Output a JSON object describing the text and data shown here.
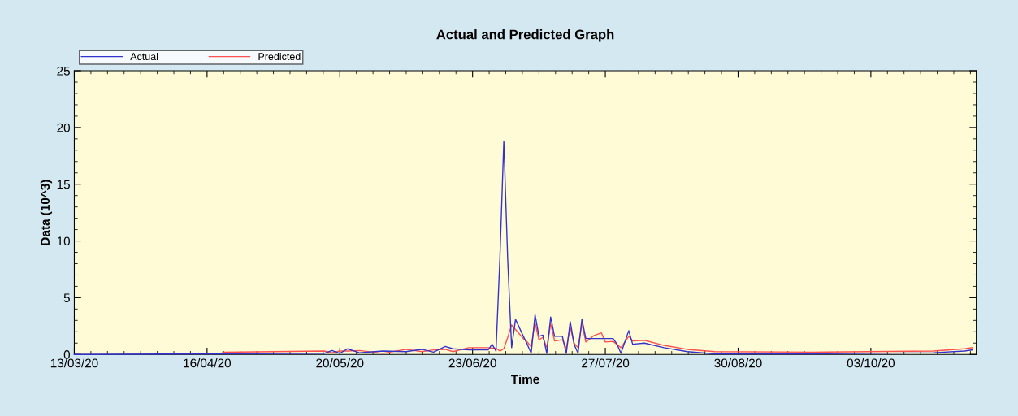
{
  "chart_data": {
    "type": "line",
    "title": "Actual and Predicted Graph",
    "xlabel": "Time",
    "ylabel": "Data (10^3)",
    "xlim": [
      "2020-03-13",
      "2020-10-30"
    ],
    "xticks": [
      {
        "value": "2020-03-13",
        "label": "13/03/20"
      },
      {
        "value": "2020-04-16",
        "label": "16/04/20"
      },
      {
        "value": "2020-05-20",
        "label": "20/05/20"
      },
      {
        "value": "2020-06-23",
        "label": "23/06/20"
      },
      {
        "value": "2020-07-27",
        "label": "27/07/20"
      },
      {
        "value": "2020-08-30",
        "label": "30/08/20"
      },
      {
        "value": "2020-10-03",
        "label": "03/10/20"
      }
    ],
    "ylim": [
      0,
      25
    ],
    "yticks": [
      0,
      5,
      10,
      15,
      20,
      25
    ],
    "grid": false,
    "legend": "top left",
    "marker": "none",
    "line_style": "solid",
    "series": [
      {
        "name": "Actual",
        "color": "#3333cc",
        "x": [
          "2020-03-13",
          "2020-04-15",
          "2020-05-16",
          "2020-05-18",
          "2020-05-20",
          "2020-05-22",
          "2020-05-25",
          "2020-05-31",
          "2020-06-06",
          "2020-06-10",
          "2020-06-13",
          "2020-06-16",
          "2020-06-18",
          "2020-06-22",
          "2020-06-27",
          "2020-06-28",
          "2020-06-29",
          "2020-06-30",
          "2020-07-01",
          "2020-07-02",
          "2020-07-03",
          "2020-07-04",
          "2020-07-06",
          "2020-07-07",
          "2020-07-08",
          "2020-07-09",
          "2020-07-10",
          "2020-07-11",
          "2020-07-12",
          "2020-07-13",
          "2020-07-14",
          "2020-07-16",
          "2020-07-17",
          "2020-07-18",
          "2020-07-19",
          "2020-07-20",
          "2020-07-21",
          "2020-07-22",
          "2020-07-29",
          "2020-07-30",
          "2020-07-31",
          "2020-08-02",
          "2020-08-03",
          "2020-08-06",
          "2020-08-11",
          "2020-08-17",
          "2020-08-24",
          "2020-09-18",
          "2020-10-19",
          "2020-10-27",
          "2020-10-29"
        ],
        "values": [
          0,
          0.05,
          0.1,
          0.35,
          0.1,
          0.5,
          0.15,
          0.3,
          0.25,
          0.45,
          0.2,
          0.7,
          0.5,
          0.4,
          0.4,
          0.9,
          0.3,
          8.5,
          18.8,
          8.3,
          0.6,
          3.1,
          1.6,
          0.9,
          0.1,
          3.5,
          1.6,
          1.7,
          0.1,
          3.3,
          1.6,
          1.6,
          0.1,
          2.9,
          0.9,
          0.1,
          3.1,
          1.4,
          1.4,
          0.9,
          0.1,
          2.1,
          0.9,
          1.0,
          0.6,
          0.25,
          0.05,
          0.05,
          0.15,
          0.3,
          0.4
        ]
      },
      {
        "name": "Predicted",
        "color": "#ff5050",
        "x": [
          "2020-04-20",
          "2020-05-16",
          "2020-05-18",
          "2020-05-20",
          "2020-05-22",
          "2020-05-25",
          "2020-05-31",
          "2020-06-06",
          "2020-06-10",
          "2020-06-13",
          "2020-06-16",
          "2020-06-18",
          "2020-06-22",
          "2020-06-27",
          "2020-06-28",
          "2020-06-29",
          "2020-06-30",
          "2020-07-01",
          "2020-07-02",
          "2020-07-03",
          "2020-07-04",
          "2020-07-06",
          "2020-07-07",
          "2020-07-08",
          "2020-07-09",
          "2020-07-10",
          "2020-07-11",
          "2020-07-12",
          "2020-07-13",
          "2020-07-14",
          "2020-07-16",
          "2020-07-17",
          "2020-07-18",
          "2020-07-19",
          "2020-07-20",
          "2020-07-21",
          "2020-07-22",
          "2020-07-24",
          "2020-07-26",
          "2020-07-27",
          "2020-07-29",
          "2020-07-31",
          "2020-08-02",
          "2020-08-03",
          "2020-08-06",
          "2020-08-11",
          "2020-08-17",
          "2020-08-24",
          "2020-09-18",
          "2020-10-19",
          "2020-10-27",
          "2020-10-29"
        ],
        "values": [
          0.2,
          0.3,
          0.15,
          0.3,
          0.3,
          0.35,
          0.1,
          0.45,
          0.25,
          0.4,
          0.45,
          0.25,
          0.6,
          0.6,
          0.55,
          0.55,
          0.3,
          0.5,
          1.5,
          2.6,
          2.2,
          1.4,
          1.1,
          0.7,
          2.8,
          1.3,
          1.5,
          0.6,
          2.7,
          1.2,
          1.3,
          0.5,
          2.4,
          1.0,
          0.6,
          2.7,
          1.1,
          1.65,
          1.9,
          1.1,
          1.15,
          0.6,
          1.6,
          1.2,
          1.25,
          0.8,
          0.45,
          0.25,
          0.2,
          0.3,
          0.5,
          0.6
        ]
      }
    ]
  }
}
